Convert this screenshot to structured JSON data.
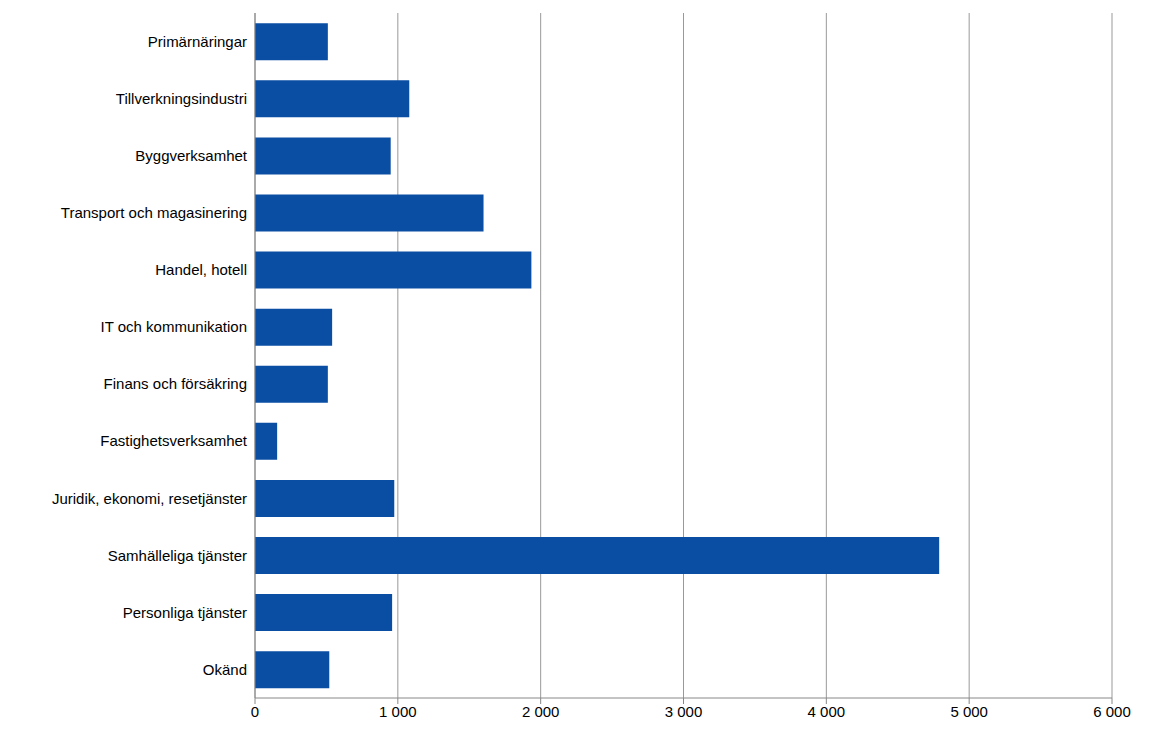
{
  "chart_data": {
    "type": "bar",
    "orientation": "horizontal",
    "categories": [
      "Primärnäringar",
      "Tillverkningsindustri",
      "Byggverksamhet",
      "Transport och magasinering",
      "Handel, hotell",
      "IT och kommunikation",
      "Finans och försäkring",
      "Fastighetsverksamhet",
      "Juridik, ekonomi, resetjänster",
      "Samhälleliga tjänster",
      "Personliga tjänster",
      "Okänd"
    ],
    "values": [
      510,
      1080,
      950,
      1600,
      1935,
      540,
      510,
      155,
      975,
      4790,
      960,
      520
    ],
    "color": "#0a4ea3",
    "xlim": [
      0,
      6000
    ],
    "xticks": [
      0,
      {
        "value": 1000,
        "label": "1 000"
      },
      {
        "value": 2000,
        "label": "2 000"
      },
      {
        "value": 3000,
        "label": "3 000"
      },
      {
        "value": 4000,
        "label": "4 000"
      },
      {
        "value": 5000,
        "label": "5 000"
      },
      {
        "value": 6000,
        "label": "6 000"
      }
    ],
    "grid": true
  }
}
